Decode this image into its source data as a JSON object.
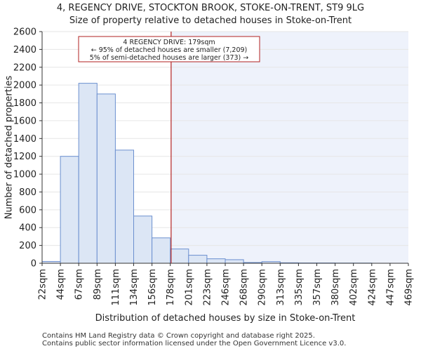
{
  "chart_data": {
    "type": "bar",
    "title": "4, REGENCY DRIVE, STOCKTON BROOK, STOKE-ON-TRENT, ST9 9LG",
    "subtitle": "Size of property relative to detached houses in Stoke-on-Trent",
    "xlabel": "Distribution of detached houses by size in Stoke-on-Trent",
    "ylabel": "Number of detached properties",
    "tick_labels": [
      "22sqm",
      "44sqm",
      "67sqm",
      "89sqm",
      "111sqm",
      "134sqm",
      "156sqm",
      "178sqm",
      "201sqm",
      "223sqm",
      "246sqm",
      "268sqm",
      "290sqm",
      "313sqm",
      "335sqm",
      "357sqm",
      "380sqm",
      "402sqm",
      "424sqm",
      "447sqm",
      "469sqm"
    ],
    "values": [
      20,
      1200,
      2020,
      1900,
      1270,
      530,
      285,
      160,
      90,
      50,
      40,
      8,
      18,
      5,
      3,
      3,
      2,
      2,
      0,
      0
    ],
    "ylim": [
      0,
      2600
    ],
    "yticks": [
      0,
      200,
      400,
      600,
      800,
      1000,
      1200,
      1400,
      1600,
      1800,
      2000,
      2200,
      2400,
      2600
    ],
    "marker_value_sqm": 179,
    "marker_bin_index": 7,
    "annotation": {
      "line1": "4 REGENCY DRIVE: 179sqm",
      "line2": "← 95% of detached houses are smaller (7,209)",
      "line3": "5% of semi-detached houses are larger (373) →"
    },
    "colors": {
      "bar_fill": "#dce6f5",
      "bar_stroke": "#6b8fcf",
      "highlight_region": "#eef2fb",
      "marker_line": "#b22222",
      "annotation_border": "#b22222"
    }
  },
  "footer": {
    "line1": "Contains HM Land Registry data © Crown copyright and database right 2025.",
    "line2": "Contains public sector information licensed under the Open Government Licence v3.0."
  }
}
